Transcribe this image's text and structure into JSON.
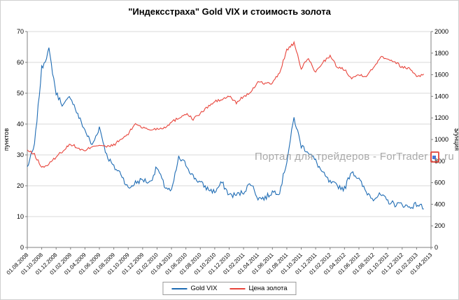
{
  "chart_data": {
    "type": "line",
    "title": "\"Индексстраха\" Gold VIX и стоимость золота",
    "months_total": 56,
    "x_start_label": "01.08.2008",
    "x_tick_labels": [
      "01.08.2008",
      "01.10.2008",
      "01.12.2008",
      "01.02.2009",
      "01.04.2009",
      "01.06.2009",
      "01.08.2009",
      "01.10.2009",
      "01.12.2009",
      "01.02.2010",
      "01.04.2010",
      "01.06.2010",
      "01.08.2010",
      "01.10.2010",
      "01.12.2010",
      "01.02.2011",
      "01.04.2011",
      "01.06.2011",
      "01.08.2011",
      "01.10.2011",
      "01.12.2011",
      "01.02.2012",
      "01.04.2012",
      "01.06.2012",
      "01.08.2012",
      "01.10.2012",
      "01.12.2012",
      "01.02.2013",
      "01.04.2013"
    ],
    "left_axis": {
      "label": "пунктов",
      "min": 0,
      "max": 70,
      "ticks": [
        0,
        10,
        20,
        30,
        40,
        50,
        60,
        70
      ]
    },
    "right_axis": {
      "label": "$/унция",
      "min": 0,
      "max": 2000,
      "ticks": [
        0,
        200,
        400,
        600,
        800,
        1000,
        1200,
        1400,
        1600,
        1800,
        2000
      ]
    },
    "grid": true,
    "legend_position": "bottom",
    "series": [
      {
        "name": "Gold VIX",
        "axis": "left",
        "color": "#1f6cb4",
        "noise": 0.9,
        "monthly_values": [
          26,
          33,
          58,
          64,
          50,
          46,
          49,
          43,
          38,
          33,
          39,
          30,
          26,
          24,
          19,
          21,
          22,
          21,
          26,
          20,
          18,
          29,
          27,
          23,
          21,
          19,
          18,
          21,
          17,
          17,
          18,
          21,
          16,
          16,
          18,
          18,
          28,
          42,
          33,
          31,
          28,
          24,
          21,
          20,
          19,
          25,
          22,
          18,
          16,
          17,
          15,
          14,
          14,
          13,
          14,
          13
        ]
      },
      {
        "name": "Цена золота",
        "axis": "right",
        "color": "#e8453c",
        "noise": 13,
        "monthly_values": [
          900,
          860,
          740,
          770,
          840,
          900,
          960,
          920,
          890,
          940,
          950,
          930,
          950,
          1000,
          1050,
          1150,
          1110,
          1090,
          1100,
          1110,
          1160,
          1200,
          1240,
          1190,
          1240,
          1300,
          1350,
          1370,
          1400,
          1340,
          1400,
          1430,
          1540,
          1520,
          1520,
          1620,
          1830,
          1890,
          1660,
          1750,
          1620,
          1720,
          1770,
          1670,
          1650,
          1570,
          1600,
          1590,
          1660,
          1770,
          1750,
          1720,
          1670,
          1660,
          1590,
          1600
        ]
      }
    ]
  },
  "watermark": {
    "prefix": "Портал для трейдеров - ForTrader",
    "suffix": ".ru"
  },
  "colors": {
    "grid": "#d9d9d9",
    "axis": "#808080",
    "text": "#000000"
  }
}
